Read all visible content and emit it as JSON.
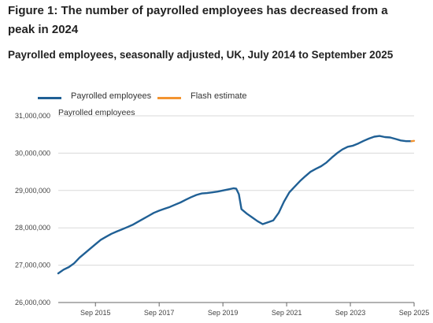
{
  "title": "Figure 1: The number of payrolled employees has decreased from a peak in 2024",
  "subtitle": "Payrolled employees, seasonally adjusted, UK, July 2014 to September 2025",
  "colors": {
    "main": "#206095",
    "flash": "#f39431",
    "grid": "#d9d9d9",
    "axis": "#666666"
  },
  "chart_data": {
    "type": "line",
    "title": "Figure 1: The number of payrolled employees has decreased from a peak in 2024",
    "subtitle": "Payrolled employees, seasonally adjusted, UK, July 2014 to September 2025",
    "ylabel": "Payrolled employees",
    "xlabel": "",
    "ylim": [
      26000000,
      31000000
    ],
    "yticks": [
      26000000,
      27000000,
      28000000,
      29000000,
      30000000,
      31000000
    ],
    "ytick_labels": [
      "26,000,000",
      "27,000,000",
      "28,000,000",
      "29,000,000",
      "30,000,000",
      "31,000,000"
    ],
    "xlim": [
      "2014-07",
      "2025-09"
    ],
    "xticks": [
      "2015-09",
      "2017-09",
      "2019-09",
      "2021-09",
      "2023-09",
      "2025-09"
    ],
    "xtick_labels": [
      "Sep 2015",
      "Sep 2017",
      "Sep 2019",
      "Sep 2021",
      "Sep 2023",
      "Sep 2025"
    ],
    "grid": true,
    "legend": "top-left",
    "series": [
      {
        "name": "Payrolled employees",
        "color": "#206095",
        "points": [
          [
            "2014-07",
            26780000
          ],
          [
            "2014-09",
            26880000
          ],
          [
            "2014-11",
            26950000
          ],
          [
            "2015-01",
            27050000
          ],
          [
            "2015-03",
            27200000
          ],
          [
            "2015-05",
            27320000
          ],
          [
            "2015-07",
            27440000
          ],
          [
            "2015-09",
            27560000
          ],
          [
            "2015-11",
            27680000
          ],
          [
            "2016-01",
            27760000
          ],
          [
            "2016-03",
            27840000
          ],
          [
            "2016-05",
            27900000
          ],
          [
            "2016-07",
            27960000
          ],
          [
            "2016-09",
            28020000
          ],
          [
            "2016-11",
            28080000
          ],
          [
            "2017-01",
            28160000
          ],
          [
            "2017-03",
            28240000
          ],
          [
            "2017-05",
            28320000
          ],
          [
            "2017-07",
            28400000
          ],
          [
            "2017-09",
            28460000
          ],
          [
            "2017-11",
            28510000
          ],
          [
            "2018-01",
            28560000
          ],
          [
            "2018-03",
            28620000
          ],
          [
            "2018-05",
            28680000
          ],
          [
            "2018-07",
            28750000
          ],
          [
            "2018-09",
            28820000
          ],
          [
            "2018-11",
            28880000
          ],
          [
            "2019-01",
            28920000
          ],
          [
            "2019-03",
            28930000
          ],
          [
            "2019-05",
            28950000
          ],
          [
            "2019-07",
            28970000
          ],
          [
            "2019-09",
            29000000
          ],
          [
            "2019-11",
            29030000
          ],
          [
            "2020-01",
            29060000
          ],
          [
            "2020-02",
            29050000
          ],
          [
            "2020-03",
            28900000
          ],
          [
            "2020-04",
            28500000
          ],
          [
            "2020-06",
            28380000
          ],
          [
            "2020-08",
            28280000
          ],
          [
            "2020-10",
            28180000
          ],
          [
            "2020-12",
            28100000
          ],
          [
            "2021-02",
            28150000
          ],
          [
            "2021-04",
            28200000
          ],
          [
            "2021-06",
            28400000
          ],
          [
            "2021-08",
            28700000
          ],
          [
            "2021-10",
            28950000
          ],
          [
            "2021-12",
            29100000
          ],
          [
            "2022-02",
            29250000
          ],
          [
            "2022-04",
            29380000
          ],
          [
            "2022-06",
            29500000
          ],
          [
            "2022-08",
            29580000
          ],
          [
            "2022-10",
            29650000
          ],
          [
            "2022-12",
            29750000
          ],
          [
            "2023-02",
            29880000
          ],
          [
            "2023-04",
            30000000
          ],
          [
            "2023-06",
            30100000
          ],
          [
            "2023-08",
            30170000
          ],
          [
            "2023-10",
            30200000
          ],
          [
            "2023-12",
            30260000
          ],
          [
            "2024-02",
            30330000
          ],
          [
            "2024-04",
            30390000
          ],
          [
            "2024-06",
            30440000
          ],
          [
            "2024-08",
            30460000
          ],
          [
            "2024-10",
            30430000
          ],
          [
            "2024-12",
            30420000
          ],
          [
            "2025-02",
            30380000
          ],
          [
            "2025-04",
            30340000
          ],
          [
            "2025-06",
            30320000
          ],
          [
            "2025-08",
            30320000
          ]
        ]
      },
      {
        "name": "Flash estimate",
        "color": "#f39431",
        "points": [
          [
            "2025-08",
            30320000
          ],
          [
            "2025-09",
            30330000
          ]
        ]
      }
    ]
  }
}
